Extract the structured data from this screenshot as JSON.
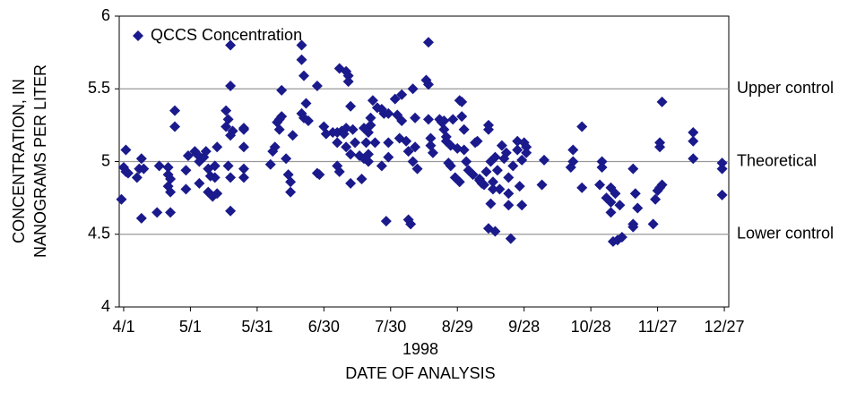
{
  "chart_data": {
    "type": "scatter",
    "y_label": [
      "CONCENTRATION, IN",
      "NANOGRAMS PER LITER"
    ],
    "x_sublabel": "1998",
    "x_label": "DATE OF ANALYSIS",
    "xlim": [
      "3/30",
      "12/29"
    ],
    "xticks": [
      "4/1",
      "5/1",
      "5/31",
      "6/30",
      "7/30",
      "8/29",
      "9/28",
      "10/28",
      "11/27",
      "12/27"
    ],
    "ylim": [
      4,
      6
    ],
    "yticks": [
      4,
      4.5,
      5,
      5.5,
      6
    ],
    "grid": false,
    "legend": "upper left",
    "reference_lines": [
      {
        "value": 5.5,
        "label": "Upper control"
      },
      {
        "value": 5,
        "label": "Theoretical"
      },
      {
        "value": 4.5,
        "label": "Lower control"
      }
    ],
    "reference_color": "#999999",
    "series": [
      {
        "name": "QCCS Concentration",
        "color": "#1a1a8c",
        "marker": "diamond",
        "x": [
          "3/31",
          "4/1",
          "4/2",
          "4/2",
          "4/3",
          "4/7",
          "4/8",
          "4/9",
          "4/9",
          "4/10",
          "4/16",
          "4/17",
          "4/21",
          "4/21",
          "4/21",
          "4/22",
          "4/22",
          "4/22",
          "4/24",
          "4/24",
          "4/29",
          "4/29",
          "4/30",
          "5/3",
          "5/4",
          "5/5",
          "5/5",
          "5/7",
          "5/8",
          "5/9",
          "5/9",
          "5/10",
          "5/11",
          "5/12",
          "5/12",
          "5/13",
          "5/13",
          "5/17",
          "5/17",
          "5/18",
          "5/18",
          "5/19",
          "5/19",
          "5/19",
          "5/19",
          "5/19",
          "5/20",
          "5/25",
          "5/25",
          "5/25",
          "5/25",
          "5/25",
          "6/6",
          "6/7",
          "6/8",
          "6/9",
          "6/10",
          "6/10",
          "6/11",
          "6/11",
          "6/13",
          "6/14",
          "6/15",
          "6/15",
          "6/16",
          "6/20",
          "6/20",
          "6/20",
          "6/21",
          "6/21",
          "6/22",
          "6/23",
          "6/27",
          "6/27",
          "6/28",
          "6/30",
          "7/1",
          "7/4",
          "7/6",
          "7/6",
          "7/6",
          "7/7",
          "7/7",
          "7/8",
          "7/9",
          "7/10",
          "7/10",
          "7/10",
          "7/11",
          "7/11",
          "7/12",
          "7/12",
          "7/12",
          "7/13",
          "7/14",
          "7/16",
          "7/17",
          "7/18",
          "7/18",
          "7/19",
          "7/20",
          "7/20",
          "7/20",
          "7/21",
          "7/21",
          "7/22",
          "7/23",
          "7/24",
          "7/26",
          "7/26",
          "7/27",
          "7/28",
          "7/29",
          "7/29",
          "7/29",
          "8/1",
          "8/2",
          "8/3",
          "8/4",
          "8/4",
          "8/6",
          "8/7",
          "8/7",
          "8/8",
          "8/9",
          "8/9",
          "8/10",
          "8/10",
          "8/11",
          "8/15",
          "8/16",
          "8/16",
          "8/16",
          "8/17",
          "8/17",
          "8/18",
          "8/21",
          "8/22",
          "8/23",
          "8/23",
          "8/24",
          "8/24",
          "8/25",
          "8/26",
          "8/26",
          "8/27",
          "8/28",
          "8/29",
          "8/30",
          "8/30",
          "8/31",
          "8/31",
          "9/1",
          "9/1",
          "9/2",
          "9/3",
          "9/5",
          "9/6",
          "9/7",
          "9/8",
          "9/8",
          "9/9",
          "9/10",
          "9/11",
          "9/12",
          "9/12",
          "9/12",
          "9/13",
          "9/13",
          "9/14",
          "9/14",
          "9/15",
          "9/15",
          "9/16",
          "9/17",
          "9/18",
          "9/19",
          "9/20",
          "9/21",
          "9/21",
          "9/21",
          "9/22",
          "9/23",
          "9/25",
          "9/25",
          "9/26",
          "9/27",
          "9/27",
          "9/28",
          "9/29",
          "9/29",
          "10/6",
          "10/7",
          "10/19",
          "10/20",
          "10/20",
          "10/24",
          "10/24",
          "11/1",
          "11/2",
          "11/2",
          "11/4",
          "11/6",
          "11/6",
          "11/6",
          "11/7",
          "11/8",
          "11/9",
          "11/10",
          "11/11",
          "11/16",
          "11/16",
          "11/16",
          "11/17",
          "11/18",
          "11/25",
          "11/26",
          "11/27",
          "11/28",
          "11/28",
          "11/28",
          "11/29",
          "11/29",
          "12/13",
          "12/13",
          "12/13",
          "12/26",
          "12/26",
          "12/26"
        ],
        "values": [
          4.74,
          4.96,
          5.08,
          4.93,
          4.92,
          4.89,
          4.95,
          5.02,
          4.61,
          4.95,
          4.65,
          4.97,
          4.96,
          4.91,
          4.83,
          4.88,
          4.79,
          4.65,
          5.24,
          5.35,
          4.81,
          4.94,
          5.04,
          5.07,
          5.05,
          4.85,
          5.0,
          5.03,
          5.07,
          4.95,
          4.79,
          4.9,
          4.76,
          4.97,
          4.89,
          5.1,
          4.78,
          5.24,
          5.35,
          4.97,
          5.29,
          4.66,
          5.8,
          5.52,
          5.18,
          4.89,
          5.21,
          4.89,
          5.22,
          5.23,
          5.1,
          4.95,
          4.98,
          5.07,
          5.1,
          5.27,
          5.22,
          5.29,
          5.49,
          5.31,
          5.02,
          4.91,
          4.86,
          4.79,
          5.18,
          5.33,
          5.8,
          5.7,
          5.3,
          5.59,
          5.4,
          5.28,
          5.52,
          4.92,
          4.91,
          5.24,
          5.19,
          5.2,
          5.2,
          5.13,
          4.97,
          4.93,
          5.64,
          5.21,
          5.19,
          5.1,
          5.62,
          5.23,
          5.59,
          5.55,
          5.38,
          4.85,
          5.05,
          5.22,
          5.13,
          5.04,
          4.88,
          5.23,
          5.02,
          5.13,
          5.05,
          5.0,
          5.2,
          5.3,
          5.25,
          5.42,
          5.13,
          5.37,
          4.97,
          5.36,
          5.33,
          4.59,
          5.03,
          5.13,
          5.33,
          5.43,
          5.32,
          5.16,
          5.46,
          5.28,
          5.14,
          4.6,
          5.07,
          4.57,
          5.0,
          5.5,
          5.3,
          5.1,
          4.95,
          5.56,
          5.53,
          5.82,
          5.29,
          5.16,
          5.11,
          5.06,
          5.29,
          5.27,
          5.22,
          5.28,
          5.17,
          5.14,
          4.99,
          5.11,
          4.97,
          5.29,
          4.89,
          5.09,
          5.42,
          4.86,
          5.41,
          5.31,
          5.22,
          5.08,
          5.0,
          4.94,
          4.91,
          5.13,
          5.14,
          4.87,
          4.88,
          4.85,
          4.84,
          4.93,
          5.25,
          4.54,
          5.22,
          4.71,
          5.0,
          4.86,
          4.81,
          4.52,
          5.03,
          4.94,
          4.81,
          5.11,
          5.02,
          5.06,
          4.89,
          4.78,
          4.7,
          4.47,
          4.97,
          5.08,
          5.14,
          4.83,
          5.01,
          4.7,
          5.13,
          5.1,
          5.06,
          4.84,
          5.01,
          4.96,
          5.08,
          5.0,
          4.82,
          5.24,
          4.84,
          5.0,
          4.96,
          4.75,
          4.72,
          4.82,
          4.65,
          4.45,
          4.78,
          4.46,
          4.7,
          4.48,
          4.95,
          4.55,
          4.57,
          4.78,
          4.68,
          4.57,
          4.74,
          4.8,
          5.1,
          5.13,
          4.82,
          5.41,
          4.84,
          5.2,
          5.14,
          5.02,
          4.99,
          4.95,
          4.77
        ]
      }
    ]
  }
}
